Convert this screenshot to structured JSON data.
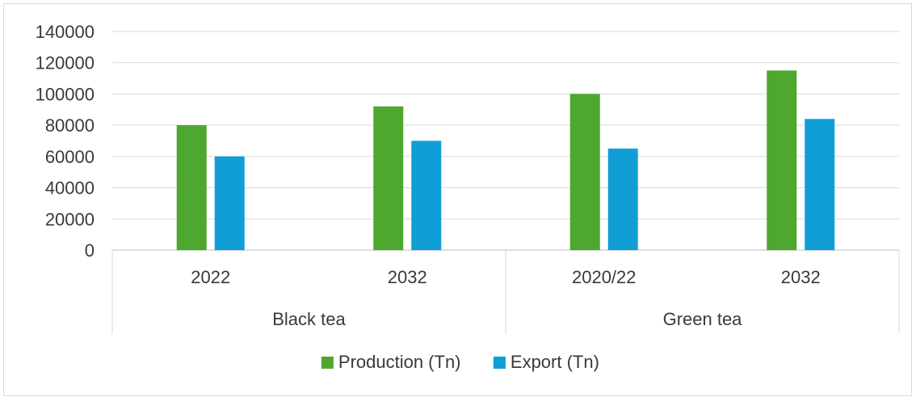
{
  "chart_data": {
    "type": "bar",
    "title": "",
    "xlabel": "",
    "ylabel": "",
    "ylim": [
      0,
      140000
    ],
    "yticks": [
      0,
      20000,
      40000,
      60000,
      80000,
      100000,
      120000,
      140000
    ],
    "grid": true,
    "legend_position": "bottom",
    "categories": [
      "2022",
      "2032",
      "2020/22",
      "2032"
    ],
    "groups": [
      {
        "label": "Black tea",
        "categories": [
          "2022",
          "2032"
        ]
      },
      {
        "label": "Green tea",
        "categories": [
          "2020/22",
          "2032"
        ]
      }
    ],
    "series": [
      {
        "name": "Production (Tn)",
        "color": "#4ea72e",
        "values": [
          80000,
          92000,
          100000,
          115000
        ]
      },
      {
        "name": "Export (Tn)",
        "color": "#0f9ed5",
        "values": [
          60000,
          70000,
          65000,
          84000
        ]
      }
    ]
  }
}
